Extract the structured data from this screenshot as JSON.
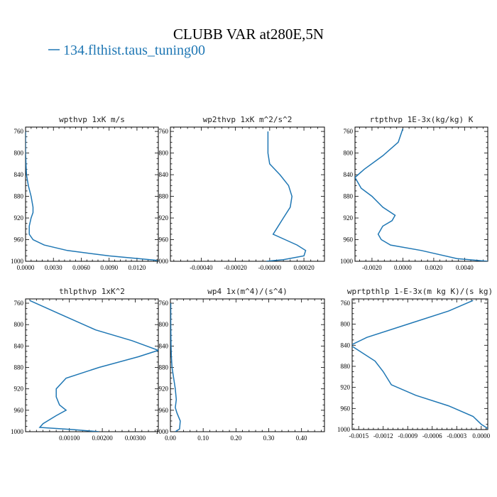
{
  "title": "CLUBB VAR at280E,5N",
  "legend": {
    "label": "134.flthist.taus_tuning00",
    "color": "#1f77b4"
  },
  "chart_data": [
    {
      "type": "line",
      "title": "wpthvp  1xK m/s",
      "xlim": [
        0.0,
        0.0143
      ],
      "ylim": [
        1000,
        752
      ],
      "x_ticks": [
        0.0,
        0.003,
        0.006,
        0.009,
        0.012
      ],
      "x_tick_labels": [
        "0.0000",
        "0.0030",
        "0.0060",
        "0.0090",
        "0.0120"
      ],
      "y_ticks": [
        760,
        800,
        840,
        880,
        920,
        960,
        1000
      ],
      "series": [
        {
          "color": "#1f77b4",
          "x": [
            0.0,
            0.0,
            0.0001,
            0.0003,
            0.0006,
            0.0008,
            0.0008,
            0.0006,
            0.0004,
            0.0004,
            0.0008,
            0.002,
            0.0045,
            0.009,
            0.014,
            0.0143
          ],
          "y": [
            760,
            800,
            840,
            860,
            880,
            900,
            910,
            920,
            935,
            950,
            960,
            970,
            980,
            990,
            998,
            1000
          ]
        }
      ]
    },
    {
      "type": "line",
      "title": "wp2thvp  1xK m^2/s^2",
      "xlim": [
        -0.00058,
        0.00032
      ],
      "ylim": [
        1000,
        752
      ],
      "x_ticks": [
        -0.0004,
        -0.0002,
        0.0,
        0.0002
      ],
      "x_tick_labels": [
        "-0.00040",
        "-0.00020",
        "-0.00000",
        "0.00020"
      ],
      "y_ticks": [
        760,
        800,
        840,
        880,
        920,
        960,
        1000
      ],
      "series": [
        {
          "color": "#1f77b4",
          "x": [
            -1e-05,
            -1e-05,
            0.0,
            6e-05,
            0.00011,
            0.00013,
            0.00012,
            8e-05,
            4e-05,
            2e-05,
            9e-05,
            0.00016,
            0.00021,
            0.0002,
            8e-05,
            -2e-05
          ],
          "y": [
            760,
            800,
            820,
            840,
            860,
            880,
            900,
            920,
            940,
            950,
            960,
            970,
            980,
            990,
            997,
            1000
          ]
        }
      ]
    },
    {
      "type": "line",
      "title": "rtpthvp  1E-3x(kg/kg) K",
      "xlim": [
        -0.0031,
        0.0055
      ],
      "ylim": [
        1000,
        752
      ],
      "x_ticks": [
        -0.002,
        0.0,
        0.002,
        0.004
      ],
      "x_tick_labels": [
        "-0.0020",
        "0.0000",
        "0.0020",
        "0.0040"
      ],
      "y_ticks": [
        760,
        800,
        840,
        880,
        920,
        960,
        1000
      ],
      "series": [
        {
          "color": "#1f77b4",
          "x": [
            0.0,
            -0.0003,
            -0.0013,
            -0.0025,
            -0.0031,
            -0.0027,
            -0.002,
            -0.0013,
            -0.0005,
            -0.0007,
            -0.0013,
            -0.0016,
            -0.0014,
            -0.0008,
            0.0012,
            0.0035,
            0.0055
          ],
          "y": [
            755,
            780,
            805,
            830,
            845,
            865,
            880,
            900,
            915,
            925,
            935,
            950,
            960,
            970,
            980,
            995,
            1000
          ]
        }
      ]
    },
    {
      "type": "line",
      "title": "thlpthvp  1xK^2",
      "xlim": [
        -0.00033,
        0.0037
      ],
      "ylim": [
        1000,
        752
      ],
      "x_ticks": [
        0.001,
        0.002,
        0.003
      ],
      "x_tick_labels": [
        "0.00100",
        "0.00200",
        "0.00300"
      ],
      "y_ticks": [
        760,
        800,
        840,
        880,
        920,
        960,
        1000
      ],
      "series": [
        {
          "color": "#1f77b4",
          "x": [
            -0.0002,
            0.0007,
            0.0018,
            0.0029,
            0.0037,
            0.0031,
            0.0019,
            0.0009,
            0.0006,
            0.0006,
            0.0007,
            0.0009,
            0.0006,
            0.0002,
            0.0001,
            0.0011,
            0.0019
          ],
          "y": [
            755,
            780,
            810,
            830,
            848,
            860,
            880,
            900,
            920,
            935,
            950,
            960,
            970,
            985,
            992,
            996,
            1000
          ]
        }
      ]
    },
    {
      "type": "line",
      "title": "wp4  1x(m^4)/(s^4)",
      "xlim": [
        0.0,
        0.47
      ],
      "ylim": [
        1000,
        752
      ],
      "x_ticks": [
        0.0,
        0.1,
        0.2,
        0.3,
        0.4
      ],
      "x_tick_labels": [
        "0.00",
        "0.10",
        "0.20",
        "0.30",
        "0.40"
      ],
      "y_ticks": [
        760,
        800,
        840,
        880,
        920,
        960,
        1000
      ],
      "series": [
        {
          "color": "#1f77b4",
          "x": [
            0.001,
            0.001,
            0.002,
            0.003,
            0.005,
            0.01,
            0.015,
            0.018,
            0.015,
            0.02,
            0.03,
            0.028,
            0.015
          ],
          "y": [
            760,
            800,
            840,
            860,
            880,
            900,
            920,
            940,
            955,
            965,
            980,
            995,
            1000
          ]
        }
      ]
    },
    {
      "type": "line",
      "title": "wprtpthlp  1-E-3x(m kg K)/(s kg)",
      "xlim": [
        -0.00158,
        8e-05
      ],
      "ylim": [
        1000,
        752
      ],
      "x_ticks": [
        -0.0015,
        -0.0012,
        -0.0009,
        -0.0006,
        -0.0003,
        0.0
      ],
      "x_tick_labels": [
        "-0.0015",
        "-0.0012",
        "-0.0009",
        "-0.0006",
        "-0.0003",
        "0.0000"
      ],
      "y_ticks": [
        760,
        800,
        840,
        880,
        920,
        960,
        1000
      ],
      "series": [
        {
          "color": "#1f77b4",
          "x": [
            -0.0001,
            -0.0004,
            -0.0009,
            -0.0014,
            -0.0016,
            -0.0013,
            -0.0012,
            -0.0011,
            -0.0008,
            -0.0004,
            -0.0001,
            0.0,
            0.0001
          ],
          "y": [
            755,
            775,
            800,
            825,
            840,
            870,
            890,
            915,
            935,
            955,
            975,
            990,
            1000
          ]
        }
      ]
    }
  ]
}
